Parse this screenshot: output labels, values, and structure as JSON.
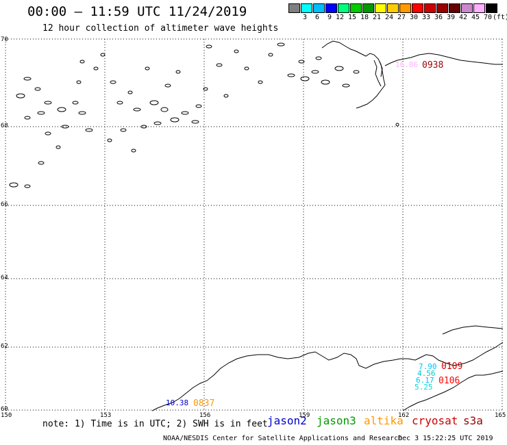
{
  "header": {
    "title": "00:00 – 11:59 UTC 11/24/2019",
    "subtitle": "12 hour collection of altimeter wave heights"
  },
  "legend": {
    "colors": [
      "#7f7f7f",
      "#00ffff",
      "#00bfff",
      "#0000ff",
      "#00ff7f",
      "#00cc00",
      "#009900",
      "#ffff00",
      "#ffcc00",
      "#ff9900",
      "#ff0000",
      "#cc0000",
      "#990000",
      "#660000",
      "#cc88cc",
      "#ffb0ff",
      "#000000"
    ],
    "labels": [
      "3",
      "6",
      "9",
      "12",
      "15",
      "18",
      "21",
      "24",
      "27",
      "30",
      "33",
      "36",
      "39",
      "42",
      "45",
      "70"
    ],
    "unit": "(ft)"
  },
  "map": {
    "lat_labels": [
      "70",
      "68",
      "66",
      "64",
      "62",
      "60"
    ],
    "lon_labels": [
      "150",
      "153",
      "156",
      "159",
      "162",
      "165"
    ],
    "observations": [
      {
        "text": "10.38",
        "color": "#0000cc"
      },
      {
        "text": "0837",
        "color": "#ff9900"
      },
      {
        "text": "7.90",
        "color": "#00bfff"
      },
      {
        "text": "4.56",
        "color": "#00cccc"
      },
      {
        "text": "6.17",
        "color": "#00bfff"
      },
      {
        "text": "5.25",
        "color": "#00dddd"
      },
      {
        "text": "0109",
        "color": "#cc0000"
      },
      {
        "text": "0106",
        "color": "#ff0000"
      },
      {
        "text": "16.86",
        "color": "#ffb0ff"
      },
      {
        "text": "0938",
        "color": "#990000"
      }
    ]
  },
  "footer": {
    "note": "note: 1) Time is in UTC; 2) SWH is in feet",
    "satellites": [
      {
        "name": "jason2",
        "color": "#0000cc"
      },
      {
        "name": "jason3",
        "color": "#009900"
      },
      {
        "name": "altika",
        "color": "#ff9900"
      },
      {
        "name": "cryosat",
        "color": "#cc0000"
      },
      {
        "name": "s3a",
        "color": "#990000"
      }
    ],
    "credit": "NOAA/NESDIS Center for Satellite Applications and Research",
    "timestamp": "Dec  3 15:22:25 UTC 2019"
  }
}
